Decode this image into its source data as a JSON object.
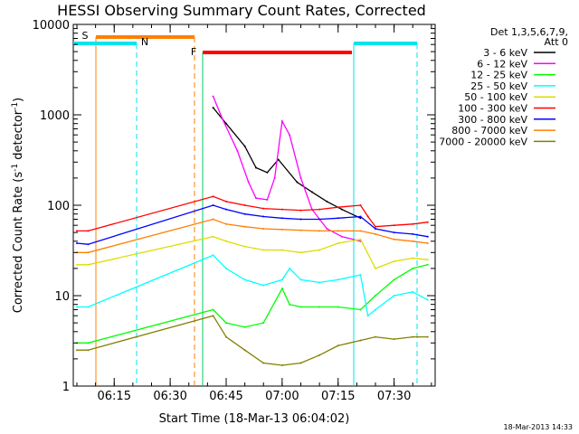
{
  "chart_data": {
    "type": "line",
    "title": "HESSI Observing Summary Count Rates, Corrected",
    "xlabel": "Start Time (18-Mar-13 06:04:02)",
    "ylabel": "Corrected Count Rate (s⁻¹ detector⁻¹)",
    "ylog": true,
    "ylim": [
      1,
      10000
    ],
    "x_tick_labels": [
      "06:15",
      "06:30",
      "06:45",
      "07:00",
      "07:15",
      "07:30"
    ],
    "y_tick_labels": [
      "1",
      "10",
      "100",
      "1000",
      "10000"
    ],
    "timestamp": "18-Mar-2013 14:33",
    "legend_header": [
      "Det 1,3,5,6,7,9,",
      "Att 0"
    ],
    "legend_position": "right",
    "state_bars": [
      {
        "label": "S",
        "color": "#ff7f00"
      },
      {
        "label": "N",
        "color": "#00e5ee"
      },
      {
        "label": "F",
        "color": "#ff0000"
      }
    ],
    "series": [
      {
        "name": "3 - 6 keV",
        "color": "#000000",
        "points": [
          [
            "06:41:30",
            1200
          ],
          [
            "06:45",
            800
          ],
          [
            "06:50",
            450
          ],
          [
            "06:53",
            260
          ],
          [
            "06:56",
            230
          ],
          [
            "06:59",
            320
          ],
          [
            "07:04",
            180
          ],
          [
            "07:08",
            140
          ],
          [
            "07:12",
            110
          ],
          [
            "07:16",
            90
          ],
          [
            "07:21",
            72
          ]
        ]
      },
      {
        "name": "6 - 12 keV",
        "color": "#ff00ff",
        "points": [
          [
            "06:41:30",
            1600
          ],
          [
            "06:44",
            900
          ],
          [
            "06:48",
            400
          ],
          [
            "06:51",
            180
          ],
          [
            "06:53",
            120
          ],
          [
            "06:56",
            115
          ],
          [
            "06:58",
            200
          ],
          [
            "07:00",
            850
          ],
          [
            "07:02",
            600
          ],
          [
            "07:05",
            200
          ],
          [
            "07:08",
            90
          ],
          [
            "07:12",
            55
          ],
          [
            "07:16",
            45
          ],
          [
            "07:21",
            40
          ]
        ]
      },
      {
        "name": "12 - 25 keV",
        "color": "#00ff00",
        "points": [
          [
            "06:05",
            3
          ],
          [
            "06:08",
            3
          ],
          [
            "06:41:30",
            7
          ],
          [
            "06:45",
            5
          ],
          [
            "06:50",
            4.5
          ],
          [
            "06:55",
            5
          ],
          [
            "07:00",
            12
          ],
          [
            "07:02",
            8
          ],
          [
            "07:05",
            7.5
          ],
          [
            "07:10",
            7.5
          ],
          [
            "07:15",
            7.5
          ],
          [
            "07:21",
            7
          ],
          [
            "07:25",
            10
          ],
          [
            "07:30",
            15
          ],
          [
            "07:35",
            20
          ],
          [
            "07:39",
            22
          ]
        ]
      },
      {
        "name": "25 - 50 keV",
        "color": "#00ffff",
        "points": [
          [
            "06:05",
            7.5
          ],
          [
            "06:08",
            7.5
          ],
          [
            "06:41:30",
            28
          ],
          [
            "06:45",
            20
          ],
          [
            "06:50",
            15
          ],
          [
            "06:55",
            13
          ],
          [
            "07:00",
            15
          ],
          [
            "07:02",
            20
          ],
          [
            "07:05",
            15
          ],
          [
            "07:10",
            14
          ],
          [
            "07:15",
            15
          ],
          [
            "07:21",
            17
          ],
          [
            "07:23",
            6
          ],
          [
            "07:25",
            7
          ],
          [
            "07:30",
            10
          ],
          [
            "07:35",
            11
          ],
          [
            "07:39",
            9
          ]
        ]
      },
      {
        "name": "50 - 100 keV",
        "color": "#dddd00",
        "points": [
          [
            "06:05",
            22
          ],
          [
            "06:08",
            22
          ],
          [
            "06:41:30",
            45
          ],
          [
            "06:45",
            40
          ],
          [
            "06:50",
            35
          ],
          [
            "06:55",
            32
          ],
          [
            "07:00",
            32
          ],
          [
            "07:05",
            30
          ],
          [
            "07:10",
            32
          ],
          [
            "07:15",
            38
          ],
          [
            "07:21",
            42
          ],
          [
            "07:25",
            20
          ],
          [
            "07:30",
            24
          ],
          [
            "07:35",
            26
          ],
          [
            "07:39",
            25
          ]
        ]
      },
      {
        "name": "100 - 300 keV",
        "color": "#ff0000",
        "points": [
          [
            "06:05",
            52
          ],
          [
            "06:08",
            52
          ],
          [
            "06:41:30",
            125
          ],
          [
            "06:45",
            110
          ],
          [
            "06:50",
            100
          ],
          [
            "06:55",
            92
          ],
          [
            "07:00",
            90
          ],
          [
            "07:05",
            88
          ],
          [
            "07:10",
            90
          ],
          [
            "07:15",
            95
          ],
          [
            "07:21",
            100
          ],
          [
            "07:23",
            75
          ],
          [
            "07:25",
            58
          ],
          [
            "07:30",
            60
          ],
          [
            "07:35",
            62
          ],
          [
            "07:39",
            65
          ]
        ]
      },
      {
        "name": "300 - 800 keV",
        "color": "#0000ff",
        "points": [
          [
            "06:05",
            38
          ],
          [
            "06:08",
            37
          ],
          [
            "06:41:30",
            100
          ],
          [
            "06:45",
            90
          ],
          [
            "06:50",
            80
          ],
          [
            "06:55",
            75
          ],
          [
            "07:00",
            72
          ],
          [
            "07:05",
            70
          ],
          [
            "07:10",
            70
          ],
          [
            "07:15",
            72
          ],
          [
            "07:21",
            75
          ],
          [
            "07:25",
            55
          ],
          [
            "07:30",
            50
          ],
          [
            "07:35",
            48
          ],
          [
            "07:39",
            45
          ]
        ]
      },
      {
        "name": "800 - 7000 keV",
        "color": "#ff7f00",
        "points": [
          [
            "06:05",
            30
          ],
          [
            "06:08",
            30
          ],
          [
            "06:41:30",
            70
          ],
          [
            "06:45",
            62
          ],
          [
            "06:50",
            58
          ],
          [
            "06:55",
            55
          ],
          [
            "07:00",
            54
          ],
          [
            "07:05",
            53
          ],
          [
            "07:10",
            52
          ],
          [
            "07:15",
            52
          ],
          [
            "07:21",
            52
          ],
          [
            "07:25",
            48
          ],
          [
            "07:30",
            42
          ],
          [
            "07:35",
            40
          ],
          [
            "07:39",
            38
          ]
        ]
      },
      {
        "name": "7000 - 20000 keV",
        "color": "#808000",
        "points": [
          [
            "06:05",
            2.5
          ],
          [
            "06:08",
            2.5
          ],
          [
            "06:41:30",
            6
          ],
          [
            "06:45",
            3.5
          ],
          [
            "06:50",
            2.5
          ],
          [
            "06:55",
            1.8
          ],
          [
            "07:00",
            1.7
          ],
          [
            "07:05",
            1.8
          ],
          [
            "07:10",
            2.2
          ],
          [
            "07:15",
            2.8
          ],
          [
            "07:21",
            3.2
          ],
          [
            "07:25",
            3.5
          ],
          [
            "07:30",
            3.3
          ],
          [
            "07:35",
            3.5
          ],
          [
            "07:39",
            3.5
          ]
        ]
      }
    ]
  }
}
